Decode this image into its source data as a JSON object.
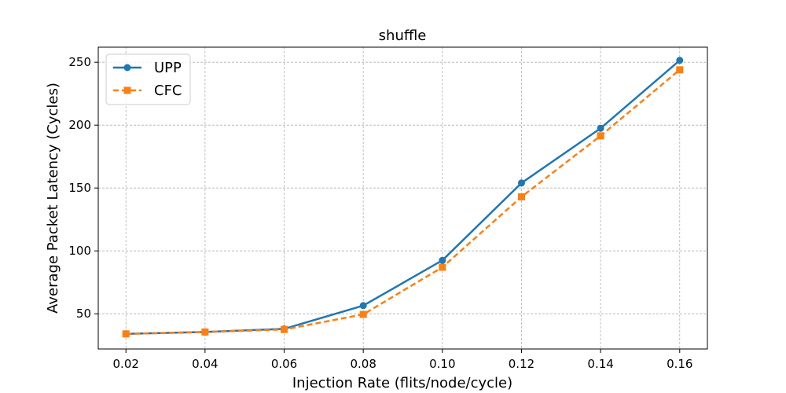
{
  "chart_data": {
    "type": "line",
    "title": "shuffle",
    "xlabel": "Injection Rate (flits/node/cycle)",
    "ylabel": "Average Packet Latency (Cycles)",
    "x": [
      0.02,
      0.04,
      0.06,
      0.08,
      0.1,
      0.12,
      0.14,
      0.16
    ],
    "x_tick_labels": [
      "0.02",
      "0.04",
      "0.06",
      "0.08",
      "0.10",
      "0.12",
      "0.14",
      "0.16"
    ],
    "y_ticks": [
      50,
      100,
      150,
      200,
      250
    ],
    "y_tick_labels": [
      "50",
      "100",
      "150",
      "200",
      "250"
    ],
    "xlim": [
      0.013,
      0.167
    ],
    "ylim": [
      22,
      262
    ],
    "grid": true,
    "legend_position": "top-left",
    "series": [
      {
        "name": "UPP",
        "values": [
          34,
          35.5,
          38,
          56.5,
          92.5,
          154,
          197.5,
          251.5
        ],
        "color": "#1f77b4",
        "marker": "circle",
        "line_style": "solid"
      },
      {
        "name": "CFC",
        "values": [
          34,
          35.5,
          37.5,
          49.5,
          87,
          143,
          191.5,
          244
        ],
        "color": "#ff7f0e",
        "marker": "square",
        "line_style": "dashed"
      }
    ]
  }
}
